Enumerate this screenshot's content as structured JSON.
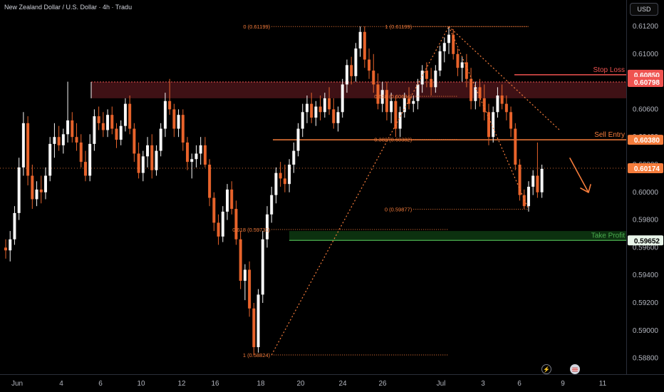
{
  "header": {
    "title": "New Zealand Dollar / U.S. Dollar · 4h · Tradu",
    "currency_button": "USD"
  },
  "colors": {
    "up": "#f7f7f7",
    "down": "#e8632b",
    "fib": "#f57c3b",
    "stop_zone": "#4a1419",
    "take_profit_zone": "#0e3a12",
    "take_profit": "#4caf50",
    "stop_loss": "#ef5350",
    "axis_text": "#b2b5be"
  },
  "icons": [
    "lightning-icon",
    "us-flag-icon"
  ],
  "chart_data": {
    "type": "candlestick",
    "title": "New Zealand Dollar / U.S. Dollar · 4h · Tradu",
    "ylim": [
      0.5875,
      0.6125
    ],
    "y_ticks": [
      "0.61200",
      "0.61000",
      "0.60800",
      "0.60600",
      "0.60400",
      "0.60200",
      "0.60000",
      "0.59800",
      "0.59600",
      "0.59400",
      "0.59200",
      "0.59000",
      "0.58800"
    ],
    "x_ticks": [
      "Jun",
      "4",
      "6",
      "10",
      "12",
      "16",
      "18",
      "20",
      "24",
      "26",
      "Jul",
      "3",
      "6",
      "9",
      "11"
    ],
    "grid": false,
    "price_labels": [
      {
        "price": 0.6085,
        "text": "0.60850",
        "style": "stop"
      },
      {
        "price": 0.60798,
        "text": "0.60798",
        "style": "stop"
      },
      {
        "price": 0.6038,
        "text": "0.60380",
        "style": "entry"
      },
      {
        "price": 0.60174,
        "text": "0.60174",
        "style": "entry"
      },
      {
        "price": 0.59652,
        "text": "0.59652",
        "style": "tp"
      }
    ],
    "levels": [
      {
        "name": "Stop Loss",
        "price": 0.6085
      },
      {
        "name": "Sell Entry",
        "price": 0.6038
      },
      {
        "name": "Take Profit",
        "price": 0.59652
      }
    ],
    "current_price": 0.60174,
    "zones": [
      {
        "kind": "stop",
        "top": 0.60798,
        "bottom": 0.6068
      },
      {
        "kind": "tp",
        "top": 0.5972,
        "bottom": 0.59652
      }
    ],
    "fib_labels": [
      "0 (0.61199)",
      "1 (0.61199)",
      "0.618 (0.60694)",
      "0.382 (0.60382)",
      "0 (0.59877)",
      "0.618 (0.59731)",
      "1 (0.58824)"
    ],
    "fib_levels": [
      {
        "label_index": 0,
        "price": 0.61199,
        "t0": 60,
        "t1": 118
      },
      {
        "label_index": 1,
        "price": 0.61199,
        "t0": 92,
        "t1": 118
      },
      {
        "label_index": 2,
        "price": 0.60694,
        "t0": 92,
        "t1": 102
      },
      {
        "label_index": 3,
        "price": 0.60382,
        "t0": 92,
        "t1": 102
      },
      {
        "label_index": 4,
        "price": 0.59877,
        "t0": 92,
        "t1": 118
      },
      {
        "label_index": 5,
        "price": 0.59731,
        "t0": 60,
        "t1": 100
      },
      {
        "label_index": 6,
        "price": 0.58824,
        "t0": 60,
        "t1": 100
      }
    ],
    "trend_lines": [
      {
        "from": [
          60,
          0.58824
        ],
        "to": [
          100,
          0.61199
        ]
      },
      {
        "from": [
          100,
          0.61199
        ],
        "to": [
          118,
          0.59877
        ]
      },
      {
        "from": [
          100,
          0.61199
        ],
        "to": [
          125,
          0.6045
        ]
      }
    ],
    "ohlc": [
      [
        0.596,
        0.5966,
        0.5952,
        0.5958
      ],
      [
        0.5958,
        0.5972,
        0.595,
        0.5966
      ],
      [
        0.5966,
        0.599,
        0.5962,
        0.5985
      ],
      [
        0.5985,
        0.6025,
        0.598,
        0.6018
      ],
      [
        0.6018,
        0.6058,
        0.6012,
        0.605
      ],
      [
        0.605,
        0.6055,
        0.6005,
        0.6012
      ],
      [
        0.6012,
        0.602,
        0.5988,
        0.5995
      ],
      [
        0.5995,
        0.6008,
        0.599,
        0.6002
      ],
      [
        0.6002,
        0.6012,
        0.5992,
        0.6
      ],
      [
        0.6,
        0.6018,
        0.5995,
        0.6012
      ],
      [
        0.6012,
        0.604,
        0.6008,
        0.6035
      ],
      [
        0.6035,
        0.605,
        0.6025,
        0.604
      ],
      [
        0.604,
        0.6048,
        0.603,
        0.6034
      ],
      [
        0.6034,
        0.6046,
        0.6028,
        0.6042
      ],
      [
        0.6042,
        0.608,
        0.6036,
        0.6052
      ],
      [
        0.6052,
        0.6058,
        0.6036,
        0.604
      ],
      [
        0.604,
        0.605,
        0.603,
        0.6036
      ],
      [
        0.6036,
        0.6042,
        0.6018,
        0.6022
      ],
      [
        0.6022,
        0.603,
        0.6008,
        0.6012
      ],
      [
        0.6012,
        0.6042,
        0.6008,
        0.6035
      ],
      [
        0.6035,
        0.606,
        0.603,
        0.6055
      ],
      [
        0.6055,
        0.6062,
        0.6045,
        0.605
      ],
      [
        0.605,
        0.6058,
        0.604,
        0.6045
      ],
      [
        0.6045,
        0.606,
        0.604,
        0.6056
      ],
      [
        0.6056,
        0.6062,
        0.6042,
        0.6046
      ],
      [
        0.6046,
        0.605,
        0.6032,
        0.6038
      ],
      [
        0.6038,
        0.6052,
        0.6034,
        0.6048
      ],
      [
        0.6048,
        0.6068,
        0.6044,
        0.6064
      ],
      [
        0.6064,
        0.607,
        0.6042,
        0.6046
      ],
      [
        0.6046,
        0.605,
        0.6022,
        0.6028
      ],
      [
        0.6028,
        0.6036,
        0.601,
        0.6014
      ],
      [
        0.6014,
        0.603,
        0.6008,
        0.6026
      ],
      [
        0.6026,
        0.604,
        0.6018,
        0.6034
      ],
      [
        0.6034,
        0.6042,
        0.601,
        0.6016
      ],
      [
        0.6016,
        0.6034,
        0.6012,
        0.603
      ],
      [
        0.603,
        0.605,
        0.6026,
        0.6046
      ],
      [
        0.6046,
        0.6072,
        0.604,
        0.6066
      ],
      [
        0.6066,
        0.6082,
        0.6056,
        0.606
      ],
      [
        0.606,
        0.6064,
        0.604,
        0.6046
      ],
      [
        0.6046,
        0.606,
        0.604,
        0.6056
      ],
      [
        0.6056,
        0.606,
        0.603,
        0.6036
      ],
      [
        0.6036,
        0.604,
        0.6016,
        0.6022
      ],
      [
        0.6022,
        0.6028,
        0.601,
        0.6024
      ],
      [
        0.6024,
        0.6034,
        0.6018,
        0.6028
      ],
      [
        0.6028,
        0.604,
        0.602,
        0.6034
      ],
      [
        0.6034,
        0.604,
        0.6018,
        0.602
      ],
      [
        0.602,
        0.6024,
        0.599,
        0.5996
      ],
      [
        0.5996,
        0.6,
        0.5972,
        0.5978
      ],
      [
        0.5978,
        0.5984,
        0.5962,
        0.5968
      ],
      [
        0.5968,
        0.599,
        0.5964,
        0.5986
      ],
      [
        0.5986,
        0.6006,
        0.598,
        0.6002
      ],
      [
        0.6002,
        0.6008,
        0.5984,
        0.5988
      ],
      [
        0.5988,
        0.5994,
        0.5962,
        0.5966
      ],
      [
        0.5966,
        0.5972,
        0.593,
        0.5936
      ],
      [
        0.5936,
        0.5948,
        0.5922,
        0.5944
      ],
      [
        0.5944,
        0.595,
        0.591,
        0.5916
      ],
      [
        0.5916,
        0.592,
        0.5882,
        0.5888
      ],
      [
        0.5888,
        0.593,
        0.5884,
        0.5926
      ],
      [
        0.5926,
        0.5972,
        0.592,
        0.5966
      ],
      [
        0.5966,
        0.599,
        0.596,
        0.5984
      ],
      [
        0.5984,
        0.6004,
        0.5978,
        0.5998
      ],
      [
        0.5998,
        0.6018,
        0.5992,
        0.6014
      ],
      [
        0.6014,
        0.6022,
        0.6004,
        0.601
      ],
      [
        0.601,
        0.602,
        0.6,
        0.6006
      ],
      [
        0.6006,
        0.6024,
        0.6,
        0.602
      ],
      [
        0.602,
        0.6036,
        0.6014,
        0.603
      ],
      [
        0.603,
        0.605,
        0.6026,
        0.6046
      ],
      [
        0.6046,
        0.6064,
        0.604,
        0.6058
      ],
      [
        0.6058,
        0.607,
        0.605,
        0.6064
      ],
      [
        0.6064,
        0.6072,
        0.605,
        0.6054
      ],
      [
        0.6054,
        0.6066,
        0.6048,
        0.6062
      ],
      [
        0.6062,
        0.607,
        0.6052,
        0.6058
      ],
      [
        0.6058,
        0.6072,
        0.6054,
        0.6068
      ],
      [
        0.6068,
        0.6076,
        0.6056,
        0.606
      ],
      [
        0.606,
        0.6068,
        0.6046,
        0.605
      ],
      [
        0.605,
        0.6062,
        0.6044,
        0.6058
      ],
      [
        0.6058,
        0.6082,
        0.6054,
        0.6078
      ],
      [
        0.6078,
        0.6096,
        0.6072,
        0.6092
      ],
      [
        0.6092,
        0.6098,
        0.6078,
        0.6084
      ],
      [
        0.6084,
        0.6108,
        0.608,
        0.6104
      ],
      [
        0.6104,
        0.612,
        0.6098,
        0.6116
      ],
      [
        0.6116,
        0.612,
        0.609,
        0.6096
      ],
      [
        0.6096,
        0.6104,
        0.6082,
        0.6088
      ],
      [
        0.6088,
        0.61,
        0.6072,
        0.6078
      ],
      [
        0.6078,
        0.6086,
        0.606,
        0.6064
      ],
      [
        0.6064,
        0.608,
        0.6058,
        0.6074
      ],
      [
        0.6074,
        0.608,
        0.6052,
        0.6058
      ],
      [
        0.6058,
        0.6072,
        0.605,
        0.6066
      ],
      [
        0.6066,
        0.607,
        0.604,
        0.6046
      ],
      [
        0.6046,
        0.6062,
        0.604,
        0.6058
      ],
      [
        0.6058,
        0.6072,
        0.6054,
        0.6068
      ],
      [
        0.6068,
        0.6076,
        0.606,
        0.6064
      ],
      [
        0.6064,
        0.607,
        0.6058,
        0.6066
      ],
      [
        0.6066,
        0.6082,
        0.606,
        0.6078
      ],
      [
        0.6078,
        0.6092,
        0.6072,
        0.6088
      ],
      [
        0.6088,
        0.6094,
        0.6076,
        0.6082
      ],
      [
        0.6082,
        0.609,
        0.607,
        0.6076
      ],
      [
        0.6076,
        0.6092,
        0.6072,
        0.6088
      ],
      [
        0.6088,
        0.6106,
        0.6084,
        0.6102
      ],
      [
        0.6102,
        0.6112,
        0.6094,
        0.6108
      ],
      [
        0.6108,
        0.612,
        0.61,
        0.6114
      ],
      [
        0.6114,
        0.6118,
        0.6096,
        0.61
      ],
      [
        0.61,
        0.6104,
        0.6084,
        0.609
      ],
      [
        0.609,
        0.6098,
        0.608,
        0.6094
      ],
      [
        0.6094,
        0.61,
        0.6076,
        0.6082
      ],
      [
        0.6082,
        0.609,
        0.606,
        0.6066
      ],
      [
        0.6066,
        0.608,
        0.606,
        0.6076
      ],
      [
        0.6076,
        0.6082,
        0.6062,
        0.6068
      ],
      [
        0.6068,
        0.6078,
        0.6052,
        0.6058
      ],
      [
        0.6058,
        0.6064,
        0.6034,
        0.604
      ],
      [
        0.604,
        0.6062,
        0.6036,
        0.6058
      ],
      [
        0.6058,
        0.6076,
        0.6054,
        0.607
      ],
      [
        0.607,
        0.6078,
        0.606,
        0.6064
      ],
      [
        0.6064,
        0.607,
        0.6052,
        0.6058
      ],
      [
        0.6058,
        0.6062,
        0.604,
        0.6046
      ],
      [
        0.6046,
        0.605,
        0.6016,
        0.602
      ],
      [
        0.602,
        0.6024,
        0.5994,
        0.5998
      ],
      [
        0.5998,
        0.6002,
        0.5988,
        0.599
      ],
      [
        0.599,
        0.6008,
        0.5986,
        0.6004
      ],
      [
        0.6004,
        0.6016,
        0.5998,
        0.6012
      ],
      [
        0.6012,
        0.6036,
        0.5996,
        0.6
      ],
      [
        0.6,
        0.602,
        0.5996,
        0.6017
      ]
    ]
  }
}
